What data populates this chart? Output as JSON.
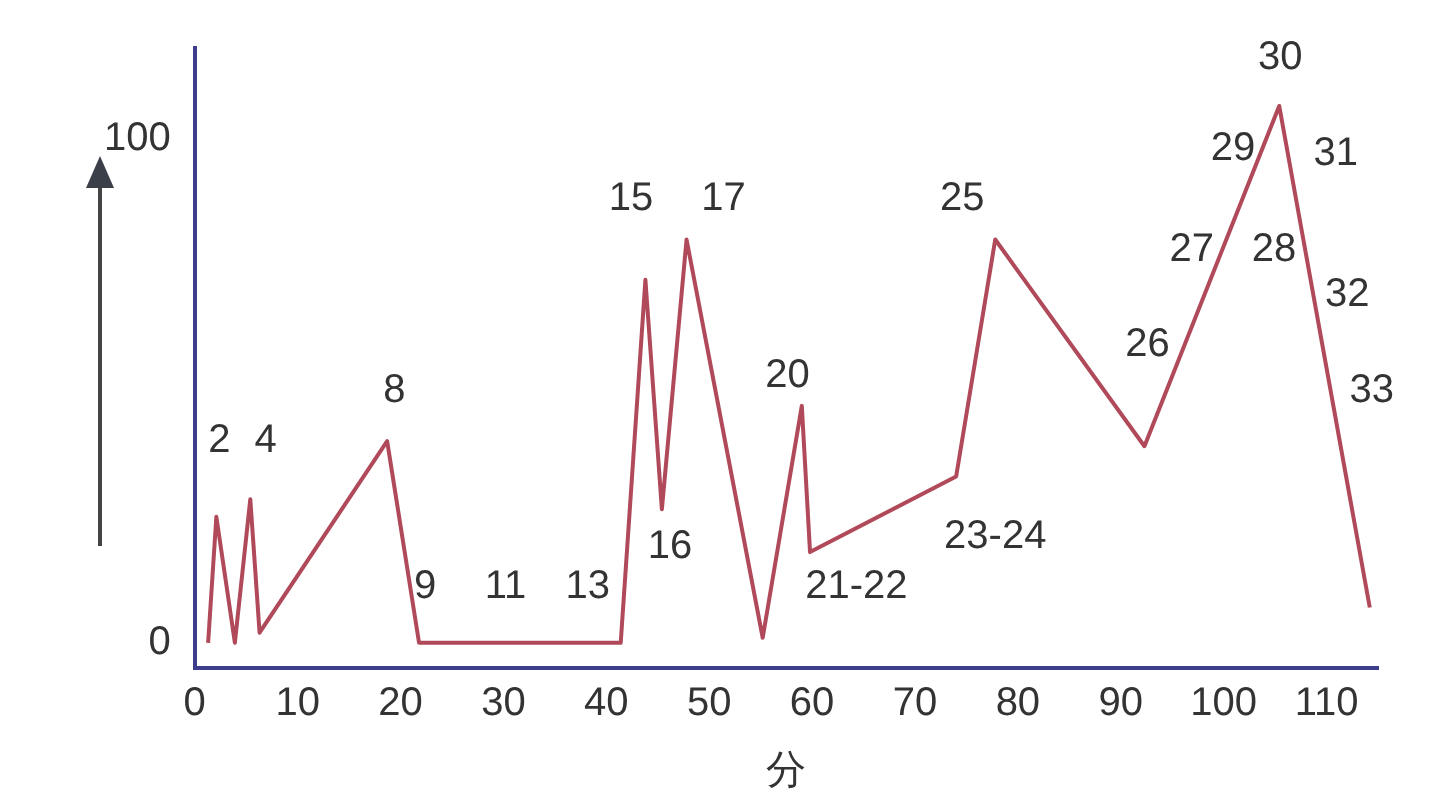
{
  "chart_data": {
    "type": "line",
    "xlabel": "分",
    "x": [
      1.3,
      2.1,
      3.9,
      5.4,
      6.3,
      18.7,
      21.8,
      41.4,
      43.8,
      45.4,
      47.8,
      55.2,
      59,
      59.8,
      74,
      77.8,
      92.3,
      105.4,
      114.2
    ],
    "series": [
      {
        "color": "#b04a5a",
        "values": [
          0,
          25,
          0,
          28.5,
          2,
          40,
          0,
          0,
          72,
          26.5,
          80,
          1,
          47,
          18,
          33,
          80,
          39,
          106.5,
          7
        ]
      }
    ],
    "xlim": [
      0,
      115
    ],
    "xticks": [
      0,
      10,
      20,
      30,
      40,
      50,
      60,
      70,
      80,
      90,
      100,
      110
    ],
    "ylim": [
      -5,
      118
    ],
    "yticks": [
      0,
      100
    ],
    "grid": false,
    "marker": "none",
    "line_style": "solid",
    "annotations": [
      "2",
      "4",
      "8",
      "9",
      "11",
      "13",
      "15",
      "16",
      "17",
      "20",
      "21-22",
      "23-24",
      "25",
      "26",
      "27",
      "28",
      "29",
      "30",
      "31",
      "32",
      "33"
    ]
  }
}
